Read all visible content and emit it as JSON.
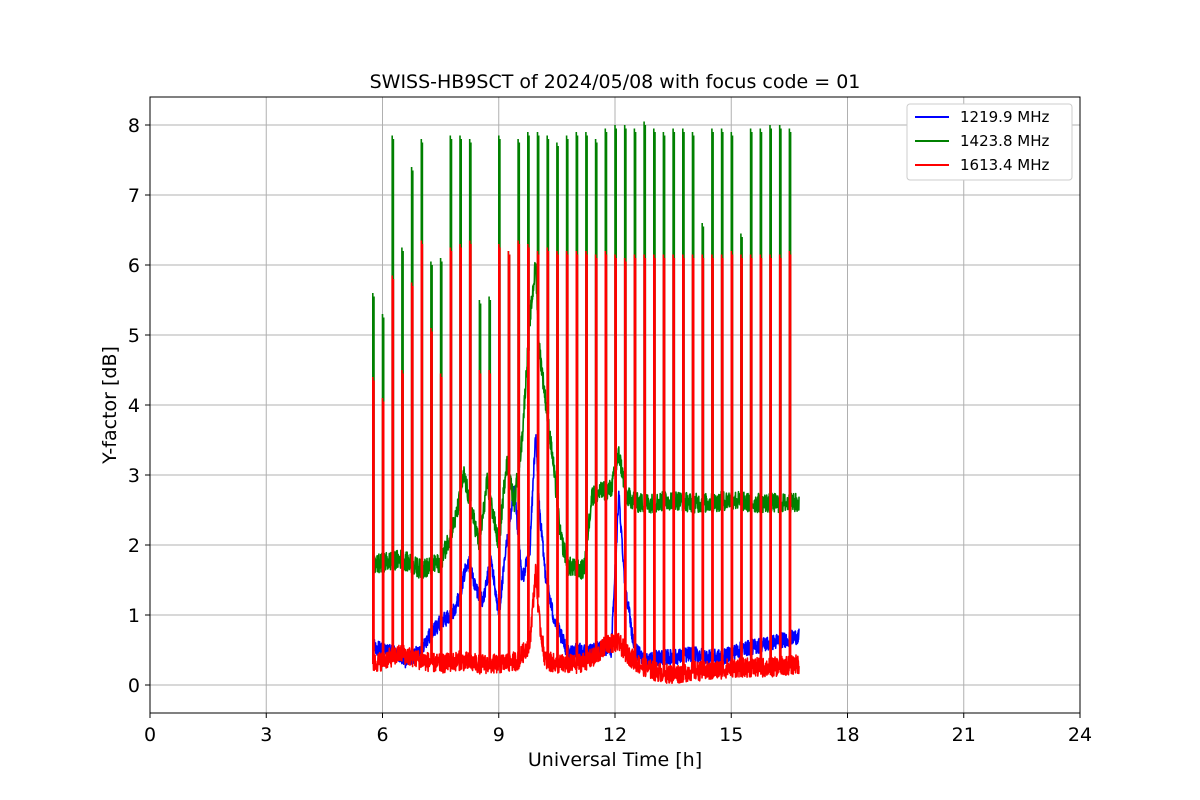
{
  "chart_data": {
    "type": "line",
    "title": "SWISS-HB9SCT of 2024/05/08 with focus code = 01",
    "xlabel": "Universal Time [h]",
    "ylabel": "Y-factor [dB]",
    "xlim": [
      0,
      24
    ],
    "ylim": [
      -0.4,
      8.4
    ],
    "xticks": [
      0,
      3,
      6,
      9,
      12,
      15,
      18,
      21,
      24
    ],
    "yticks": [
      0,
      1,
      2,
      3,
      4,
      5,
      6,
      7,
      8
    ],
    "grid": true,
    "legend_position": "top-right",
    "series": [
      {
        "name": "1219.9 MHz",
        "color": "#0000ff",
        "x": [
          5.75,
          6.0,
          6.3,
          6.6,
          6.9,
          7.2,
          7.5,
          7.8,
          8.0,
          8.2,
          8.4,
          8.6,
          8.8,
          9.0,
          9.2,
          9.4,
          9.6,
          9.8,
          9.95,
          10.05,
          10.2,
          10.4,
          10.6,
          10.8,
          11.0,
          11.3,
          11.6,
          11.9,
          12.1,
          12.25,
          12.5,
          12.8,
          13.2,
          13.6,
          14.0,
          14.4,
          14.8,
          15.2,
          15.6,
          16.0,
          16.4,
          16.75
        ],
        "values": [
          0.55,
          0.5,
          0.45,
          0.35,
          0.45,
          0.7,
          0.9,
          1.0,
          1.3,
          1.8,
          1.4,
          1.2,
          1.8,
          1.0,
          2.0,
          2.8,
          1.5,
          1.9,
          3.6,
          2.5,
          1.6,
          1.0,
          0.7,
          0.45,
          0.5,
          0.45,
          0.55,
          0.5,
          2.7,
          1.5,
          0.5,
          0.35,
          0.4,
          0.4,
          0.45,
          0.4,
          0.4,
          0.5,
          0.55,
          0.6,
          0.65,
          0.7
        ]
      },
      {
        "name": "1423.8 MHz",
        "color": "#008000",
        "x": [
          5.75,
          6.0,
          6.5,
          7.0,
          7.5,
          7.9,
          8.1,
          8.3,
          8.5,
          8.7,
          9.0,
          9.2,
          9.4,
          9.6,
          9.8,
          9.95,
          10.05,
          10.2,
          10.4,
          10.6,
          10.8,
          11.0,
          11.2,
          11.4,
          11.6,
          11.9,
          12.1,
          12.3,
          12.6,
          13.0,
          13.5,
          14.0,
          14.5,
          15.0,
          15.5,
          16.0,
          16.75
        ],
        "values": [
          1.7,
          1.75,
          1.8,
          1.65,
          1.75,
          2.4,
          3.0,
          2.5,
          2.0,
          2.9,
          2.0,
          3.2,
          2.6,
          3.5,
          5.2,
          6.0,
          4.8,
          4.1,
          3.2,
          2.1,
          1.7,
          1.65,
          1.65,
          2.7,
          2.75,
          2.8,
          3.3,
          2.7,
          2.6,
          2.6,
          2.65,
          2.6,
          2.6,
          2.65,
          2.6,
          2.6,
          2.6
        ]
      },
      {
        "name": "1613.4 MHz",
        "color": "#ff0000",
        "x": [
          5.75,
          6.0,
          6.5,
          7.0,
          7.5,
          8.0,
          8.5,
          9.0,
          9.5,
          9.8,
          9.95,
          10.05,
          10.2,
          10.5,
          11.0,
          11.5,
          11.8,
          12.1,
          12.3,
          12.6,
          13.0,
          13.5,
          14.0,
          14.5,
          15.0,
          15.5,
          16.0,
          16.75
        ],
        "values": [
          0.3,
          0.35,
          0.45,
          0.35,
          0.3,
          0.35,
          0.3,
          0.3,
          0.35,
          0.6,
          1.6,
          0.9,
          0.35,
          0.3,
          0.3,
          0.4,
          0.6,
          0.6,
          0.45,
          0.3,
          0.2,
          0.15,
          0.2,
          0.2,
          0.25,
          0.25,
          0.25,
          0.3
        ]
      }
    ],
    "calibration_spikes": {
      "times": [
        5.75,
        6.0,
        6.25,
        6.5,
        6.75,
        7.0,
        7.25,
        7.5,
        7.75,
        8.0,
        8.25,
        8.5,
        8.75,
        9.0,
        9.25,
        9.5,
        9.75,
        10.0,
        10.25,
        10.5,
        10.75,
        11.0,
        11.25,
        11.5,
        11.75,
        12.0,
        12.25,
        12.5,
        12.75,
        13.0,
        13.25,
        13.5,
        13.75,
        14.0,
        14.25,
        14.5,
        14.75,
        15.0,
        15.25,
        15.5,
        15.75,
        16.0,
        16.25,
        16.5
      ],
      "green_peaks": [
        5.6,
        5.3,
        7.85,
        6.25,
        7.4,
        7.8,
        6.05,
        6.1,
        7.85,
        7.85,
        7.8,
        5.5,
        5.55,
        7.85,
        6.2,
        7.8,
        7.9,
        7.9,
        7.85,
        7.75,
        7.85,
        7.9,
        7.9,
        7.8,
        7.95,
        8.0,
        8.0,
        7.95,
        8.05,
        7.95,
        7.9,
        7.95,
        7.95,
        7.9,
        6.6,
        7.95,
        7.95,
        7.9,
        6.45,
        7.95,
        7.95,
        8.0,
        8.0,
        7.95
      ],
      "red_peaks": [
        4.4,
        4.1,
        5.85,
        4.5,
        5.75,
        6.35,
        5.1,
        4.45,
        6.25,
        6.3,
        6.35,
        4.5,
        4.5,
        6.3,
        6.2,
        6.35,
        6.3,
        6.2,
        6.25,
        6.2,
        6.2,
        6.2,
        6.2,
        6.15,
        6.2,
        6.15,
        6.1,
        6.15,
        6.15,
        6.15,
        6.15,
        6.15,
        6.15,
        6.15,
        6.15,
        6.15,
        6.15,
        6.2,
        6.15,
        6.15,
        6.15,
        6.15,
        6.15,
        6.2
      ]
    }
  }
}
